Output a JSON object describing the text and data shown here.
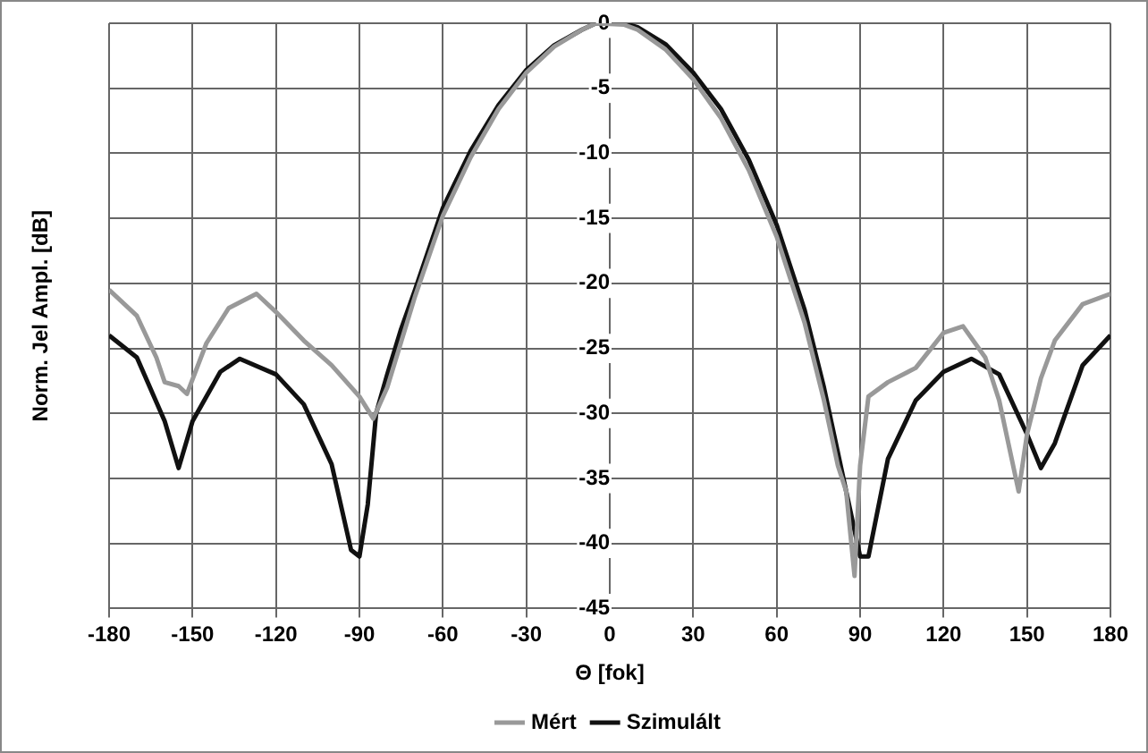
{
  "chart_data": {
    "type": "line",
    "xlabel": "Θ [fok]",
    "ylabel": "Norm. Jel Ampl. [dB]",
    "xlim": [
      -180,
      180
    ],
    "xticks": [
      -180,
      -150,
      -120,
      -90,
      -60,
      -30,
      0,
      30,
      60,
      90,
      120,
      150,
      180
    ],
    "ylim": [
      -45,
      0
    ],
    "yticks": [
      0,
      -5,
      -10,
      -15,
      -20,
      -25,
      -30,
      -35,
      -40,
      -45
    ],
    "grid": true,
    "legend": "bottom",
    "marker": "none",
    "line_style": "solid",
    "series": [
      {
        "name": "Mért",
        "color": "#999999",
        "x": [
          -180,
          -170,
          -163,
          -160,
          -155,
          -152,
          -145,
          -137,
          -127,
          -120,
          -110,
          -100,
          -90,
          -85,
          -80,
          -75,
          -70,
          -60,
          -50,
          -40,
          -30,
          -20,
          -10,
          -5,
          5,
          10,
          20,
          30,
          40,
          50,
          60,
          70,
          77,
          82,
          85,
          88,
          90,
          93,
          100,
          110,
          120,
          127,
          135,
          140,
          147,
          150,
          155,
          160,
          170,
          180
        ],
        "values": [
          -20.5,
          -22.5,
          -25.7,
          -27.6,
          -27.9,
          -28.5,
          -24.6,
          -21.9,
          -20.8,
          -22.2,
          -24.4,
          -26.3,
          -28.7,
          -30.4,
          -28,
          -24.5,
          -21,
          -14.8,
          -10.3,
          -6.6,
          -3.8,
          -1.8,
          -0.5,
          0,
          -0.1,
          -0.5,
          -2,
          -4.3,
          -7.3,
          -11.3,
          -16.4,
          -23,
          -29,
          -34,
          -36,
          -42.5,
          -34,
          -28.7,
          -27.6,
          -26.5,
          -23.8,
          -23.3,
          -25.7,
          -29,
          -36,
          -31.6,
          -27.3,
          -24.4,
          -21.6,
          -20.8
        ]
      },
      {
        "name": "Szimulált",
        "color": "#111111",
        "x": [
          -180,
          -170,
          -160,
          -155,
          -150,
          -140,
          -133,
          -120,
          -110,
          -100,
          -93,
          -90,
          -87,
          -84,
          -80,
          -75,
          -70,
          -60,
          -50,
          -40,
          -30,
          -20,
          -10,
          -5,
          5,
          10,
          20,
          30,
          40,
          50,
          60,
          70,
          77,
          82,
          87,
          90,
          93,
          100,
          110,
          120,
          130,
          140,
          150,
          155,
          160,
          170,
          180
        ],
        "values": [
          -24,
          -25.7,
          -30.6,
          -34.2,
          -30.6,
          -26.8,
          -25.8,
          -27,
          -29.3,
          -33.9,
          -40.5,
          -41,
          -37,
          -30,
          -27,
          -23.5,
          -20.5,
          -14.2,
          -9.8,
          -6.3,
          -3.6,
          -1.7,
          -0.5,
          0,
          0,
          -0.3,
          -1.6,
          -3.8,
          -6.6,
          -10.5,
          -15.5,
          -22,
          -28,
          -33,
          -38,
          -41,
          -41,
          -33.5,
          -29,
          -26.8,
          -25.8,
          -27,
          -31.6,
          -34.2,
          -32.3,
          -26.3,
          -24
        ]
      }
    ]
  }
}
